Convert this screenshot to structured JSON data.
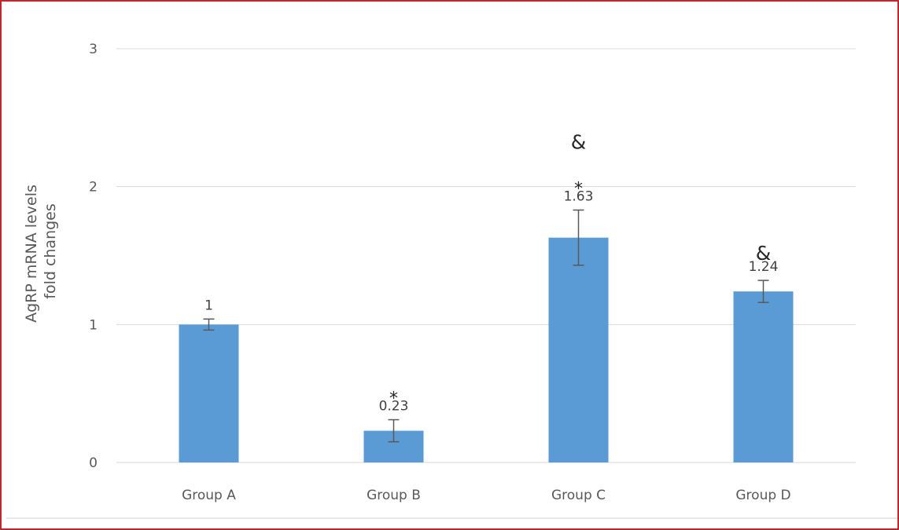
{
  "chart_data": {
    "type": "bar",
    "title": "",
    "ylabel_lines": [
      "AgRP mRNA levels",
      "fold changes"
    ],
    "xlabel": "",
    "categories": [
      "Group A",
      "Group B",
      "Group C",
      "Group D"
    ],
    "values": [
      1.0,
      0.23,
      1.63,
      1.24
    ],
    "data_labels": [
      "1",
      "0.23",
      "1.63",
      "1.24"
    ],
    "errors": [
      0.04,
      0.08,
      0.2,
      0.08
    ],
    "annotations": [
      [],
      [
        "*"
      ],
      [
        "&",
        "*"
      ],
      [
        "&"
      ]
    ],
    "ylim": [
      0,
      3
    ],
    "yticks": [
      0,
      1,
      2,
      3
    ],
    "grid": true,
    "legend": "none",
    "colors": {
      "bar": "#5b9bd5",
      "frame": "#c0272d",
      "grid": "#d9d9d9"
    }
  }
}
